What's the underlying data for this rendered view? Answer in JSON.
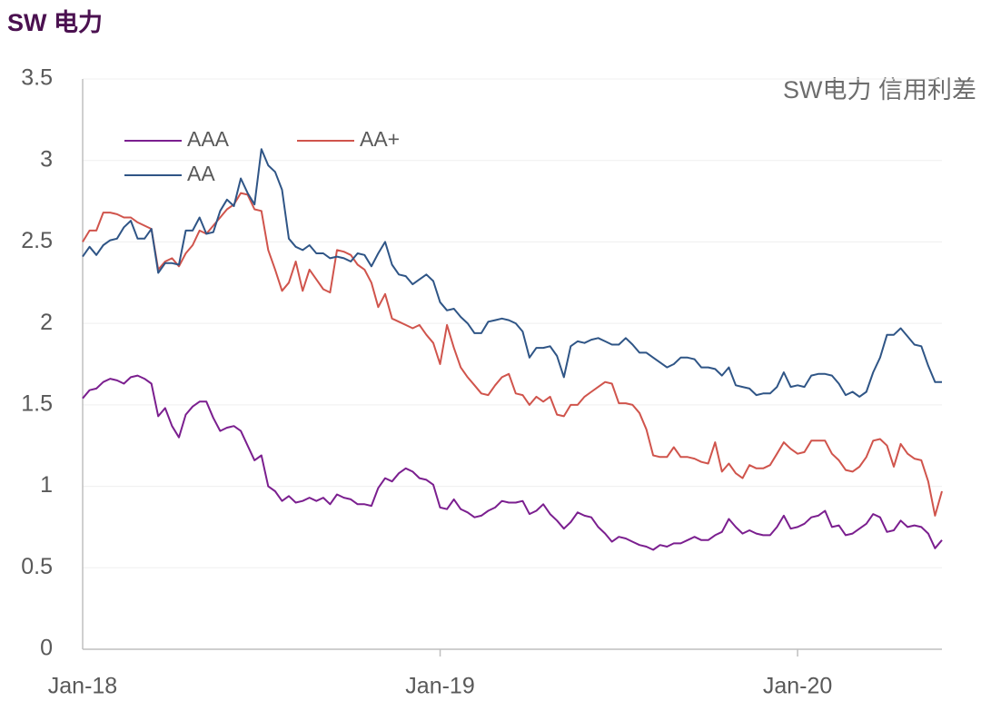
{
  "chart_data": {
    "type": "line",
    "title": "SW 电力",
    "annotation": "SW电力 信用利差",
    "categories": [
      "Jan-18",
      null,
      null,
      null,
      null,
      null,
      null,
      null,
      null,
      null,
      null,
      null,
      null,
      null,
      null,
      null,
      null,
      null,
      null,
      null,
      null,
      null,
      null,
      null,
      null,
      null,
      null,
      null,
      null,
      null,
      null,
      null,
      null,
      null,
      null,
      null,
      null,
      null,
      null,
      null,
      null,
      null,
      null,
      null,
      null,
      null,
      null,
      null,
      null,
      null,
      null,
      null,
      "Jan-19",
      null,
      null,
      null,
      null,
      null,
      null,
      null,
      null,
      null,
      null,
      null,
      null,
      null,
      null,
      null,
      null,
      null,
      null,
      null,
      null,
      null,
      null,
      null,
      null,
      null,
      null,
      null,
      null,
      null,
      null,
      null,
      null,
      null,
      null,
      null,
      null,
      null,
      null,
      null,
      null,
      null,
      null,
      null,
      null,
      null,
      null,
      null,
      null,
      null,
      null,
      null,
      "Jan-20",
      null,
      null,
      null,
      null,
      null,
      null,
      null,
      null,
      null,
      null,
      null,
      null,
      null,
      null,
      null,
      null,
      null,
      null,
      null,
      null,
      null
    ],
    "series": [
      {
        "name": "AAA",
        "color": "#7b1f8f",
        "values": [
          1.54,
          1.59,
          1.6,
          1.64,
          1.66,
          1.65,
          1.63,
          1.67,
          1.68,
          1.66,
          1.63,
          1.43,
          1.48,
          1.37,
          1.3,
          1.44,
          1.49,
          1.52,
          1.52,
          1.42,
          1.34,
          1.36,
          1.37,
          1.34,
          1.25,
          1.16,
          1.19,
          1.0,
          0.97,
          0.91,
          0.94,
          0.9,
          0.91,
          0.93,
          0.91,
          0.93,
          0.89,
          0.95,
          0.93,
          0.92,
          0.89,
          0.89,
          0.88,
          0.99,
          1.05,
          1.03,
          1.08,
          1.11,
          1.09,
          1.05,
          1.04,
          1.01,
          0.87,
          0.86,
          0.92,
          0.86,
          0.84,
          0.81,
          0.82,
          0.85,
          0.87,
          0.91,
          0.9,
          0.9,
          0.91,
          0.83,
          0.85,
          0.89,
          0.83,
          0.79,
          0.74,
          0.78,
          0.84,
          0.82,
          0.81,
          0.75,
          0.71,
          0.66,
          0.69,
          0.68,
          0.66,
          0.64,
          0.63,
          0.61,
          0.64,
          0.63,
          0.65,
          0.65,
          0.67,
          0.69,
          0.67,
          0.67,
          0.7,
          0.72,
          0.8,
          0.75,
          0.71,
          0.73,
          0.71,
          0.7,
          0.7,
          0.75,
          0.82,
          0.74,
          0.75,
          0.77,
          0.81,
          0.82,
          0.85,
          0.75,
          0.76,
          0.7,
          0.71,
          0.74,
          0.77,
          0.83,
          0.81,
          0.72,
          0.73,
          0.79,
          0.75,
          0.76,
          0.75,
          0.71,
          0.62,
          0.67
        ]
      },
      {
        "name": "AA+",
        "color": "#d0544c",
        "values": [
          2.5,
          2.57,
          2.57,
          2.68,
          2.68,
          2.67,
          2.65,
          2.65,
          2.62,
          2.6,
          2.58,
          2.33,
          2.38,
          2.4,
          2.35,
          2.43,
          2.48,
          2.57,
          2.55,
          2.6,
          2.65,
          2.7,
          2.73,
          2.8,
          2.79,
          2.7,
          2.69,
          2.45,
          2.33,
          2.2,
          2.25,
          2.38,
          2.2,
          2.33,
          2.27,
          2.21,
          2.19,
          2.45,
          2.44,
          2.42,
          2.36,
          2.33,
          2.25,
          2.1,
          2.18,
          2.03,
          2.01,
          1.99,
          1.97,
          1.99,
          1.93,
          1.88,
          1.75,
          1.99,
          1.85,
          1.73,
          1.67,
          1.62,
          1.57,
          1.56,
          1.62,
          1.67,
          1.69,
          1.57,
          1.56,
          1.5,
          1.55,
          1.52,
          1.55,
          1.44,
          1.43,
          1.5,
          1.5,
          1.55,
          1.58,
          1.61,
          1.64,
          1.63,
          1.51,
          1.51,
          1.5,
          1.45,
          1.35,
          1.19,
          1.18,
          1.18,
          1.24,
          1.18,
          1.18,
          1.17,
          1.15,
          1.14,
          1.27,
          1.09,
          1.14,
          1.08,
          1.05,
          1.13,
          1.11,
          1.11,
          1.13,
          1.2,
          1.27,
          1.23,
          1.2,
          1.21,
          1.28,
          1.28,
          1.28,
          1.2,
          1.16,
          1.1,
          1.09,
          1.12,
          1.18,
          1.28,
          1.29,
          1.25,
          1.12,
          1.26,
          1.2,
          1.17,
          1.16,
          1.03,
          0.82,
          0.97
        ]
      },
      {
        "name": "AA",
        "color": "#2f5586",
        "values": [
          2.41,
          2.47,
          2.42,
          2.48,
          2.51,
          2.52,
          2.59,
          2.63,
          2.52,
          2.52,
          2.58,
          2.31,
          2.37,
          2.37,
          2.36,
          2.57,
          2.57,
          2.65,
          2.55,
          2.56,
          2.69,
          2.76,
          2.72,
          2.89,
          2.8,
          2.73,
          3.07,
          2.97,
          2.93,
          2.82,
          2.52,
          2.47,
          2.45,
          2.48,
          2.43,
          2.43,
          2.4,
          2.41,
          2.4,
          2.38,
          2.43,
          2.42,
          2.35,
          2.43,
          2.5,
          2.36,
          2.3,
          2.29,
          2.24,
          2.27,
          2.3,
          2.26,
          2.13,
          2.08,
          2.09,
          2.04,
          2.0,
          1.94,
          1.94,
          2.01,
          2.02,
          2.03,
          2.02,
          2.0,
          1.95,
          1.79,
          1.85,
          1.85,
          1.86,
          1.8,
          1.67,
          1.86,
          1.89,
          1.88,
          1.9,
          1.91,
          1.89,
          1.87,
          1.87,
          1.91,
          1.87,
          1.82,
          1.82,
          1.79,
          1.76,
          1.73,
          1.75,
          1.79,
          1.79,
          1.78,
          1.73,
          1.73,
          1.72,
          1.68,
          1.73,
          1.62,
          1.61,
          1.6,
          1.56,
          1.57,
          1.57,
          1.61,
          1.7,
          1.61,
          1.62,
          1.61,
          1.68,
          1.69,
          1.69,
          1.68,
          1.63,
          1.56,
          1.58,
          1.55,
          1.58,
          1.7,
          1.79,
          1.93,
          1.93,
          1.97,
          1.92,
          1.87,
          1.86,
          1.74,
          1.64,
          1.64
        ]
      }
    ],
    "ylim": [
      0,
      3.5
    ],
    "yticks": [
      0,
      0.5,
      1,
      1.5,
      2,
      2.5,
      3,
      3.5
    ],
    "grid": true
  }
}
